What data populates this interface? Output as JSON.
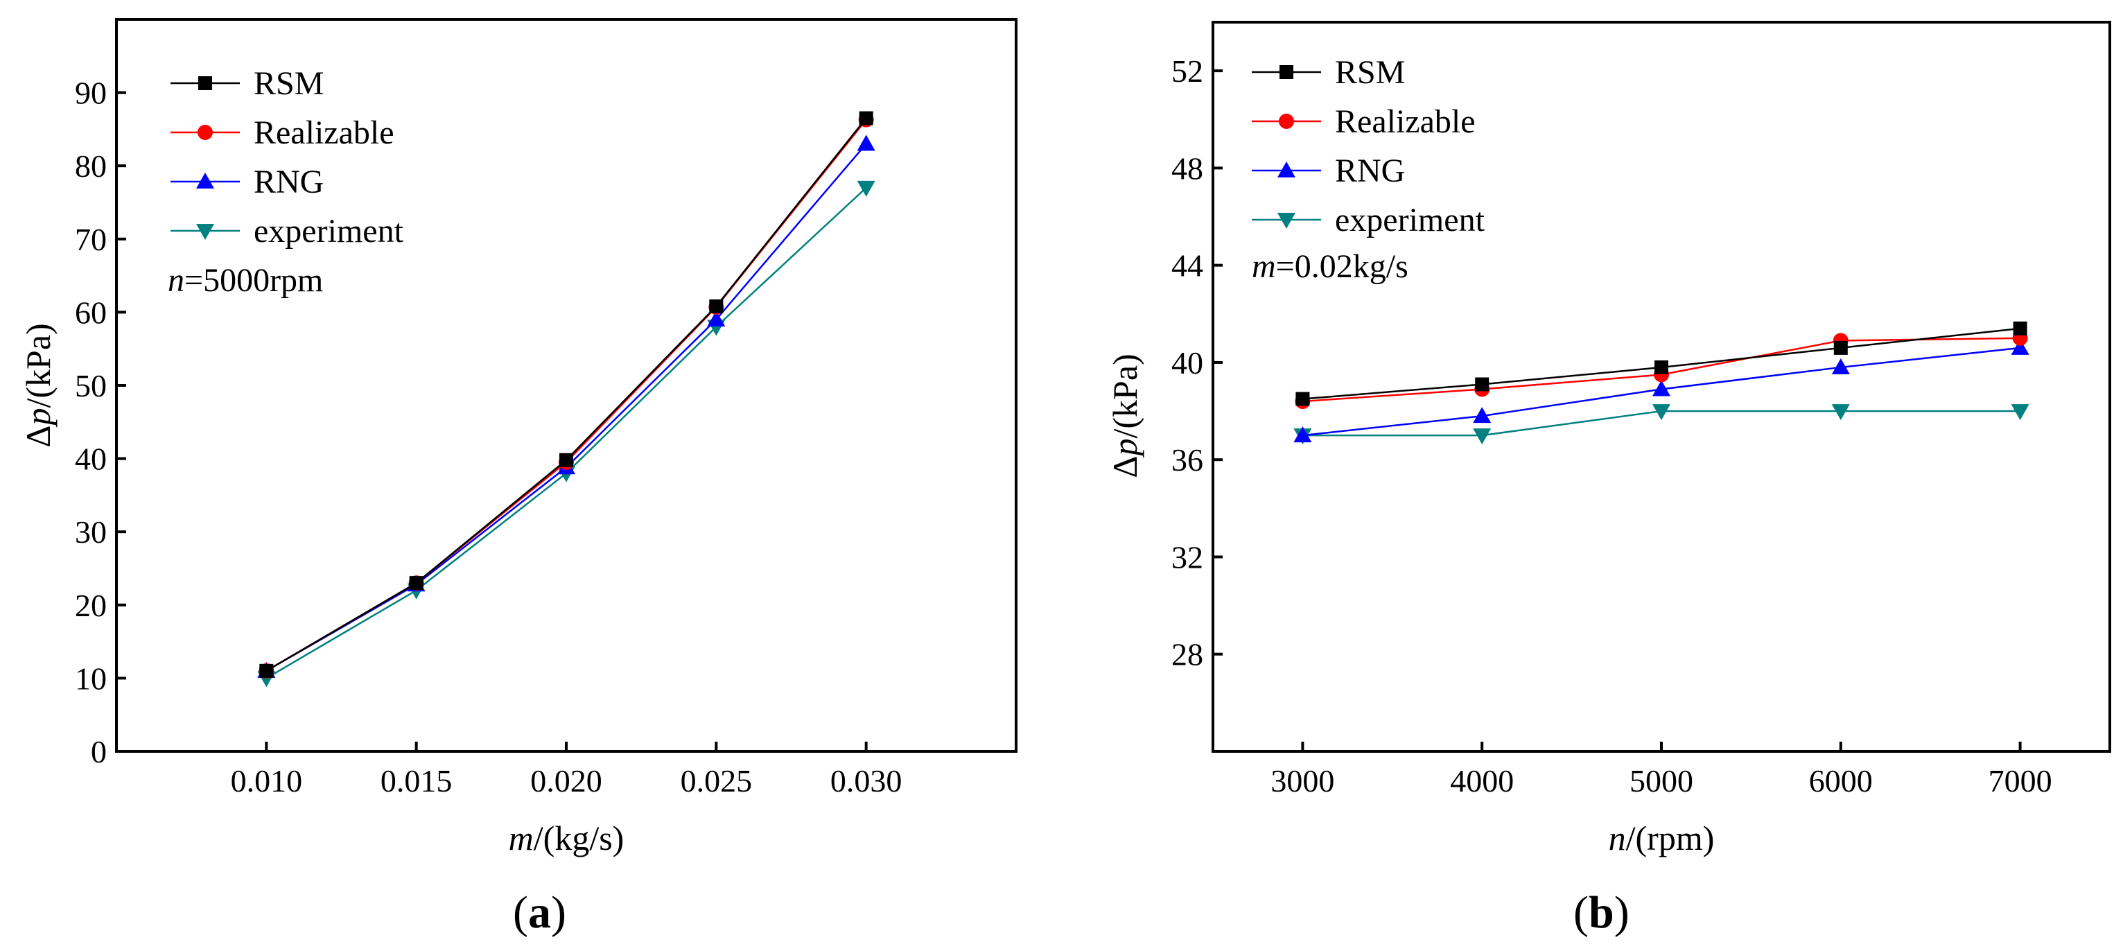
{
  "chart_data": [
    {
      "type": "line",
      "panel_label": "a",
      "xlabel": {
        "var": "m",
        "unit": "/(kg/s)"
      },
      "ylabel": {
        "prefix": "Δ",
        "var": "p",
        "unit": "/(kPa)"
      },
      "annotation": {
        "var": "n",
        "rest": "=5000rpm"
      },
      "xlim": [
        0.005,
        0.035
      ],
      "ylim": [
        0,
        100
      ],
      "x": [
        0.01,
        0.015,
        0.02,
        0.025,
        0.03
      ],
      "x_tick_labels": [
        "0.010",
        "0.015",
        "0.020",
        "0.025",
        "0.030"
      ],
      "y_ticks": [
        0,
        10,
        20,
        30,
        40,
        50,
        60,
        70,
        80,
        90
      ],
      "y_tick_labels": [
        "0",
        "10",
        "20",
        "30",
        "40",
        "50",
        "60",
        "70",
        "80",
        "90"
      ],
      "series": [
        {
          "name": "RSM",
          "values": [
            11.0,
            23.0,
            39.8,
            60.8,
            86.5
          ]
        },
        {
          "name": "Realizable",
          "values": [
            11.0,
            23.0,
            39.5,
            60.7,
            86.3
          ]
        },
        {
          "name": "RNG",
          "values": [
            11.0,
            22.8,
            38.8,
            59.0,
            83.0
          ]
        },
        {
          "name": "experiment",
          "values": [
            10.0,
            22.0,
            38.0,
            58.0,
            77.0
          ]
        }
      ],
      "legend_position": "top-left"
    },
    {
      "type": "line",
      "panel_label": "b",
      "xlabel": {
        "var": "n",
        "unit": "/(rpm)"
      },
      "ylabel": {
        "prefix": "Δ",
        "var": "p",
        "unit": "/(kPa)"
      },
      "annotation": {
        "var": "m",
        "rest": "=0.02kg/s"
      },
      "xlim": [
        2500,
        7500
      ],
      "ylim": [
        24,
        54
      ],
      "x": [
        3000,
        4000,
        5000,
        6000,
        7000
      ],
      "x_tick_labels": [
        "3000",
        "4000",
        "5000",
        "6000",
        "7000"
      ],
      "y_ticks": [
        28,
        32,
        36,
        40,
        44,
        48,
        52
      ],
      "y_tick_labels": [
        "28",
        "32",
        "36",
        "40",
        "44",
        "48",
        "52"
      ],
      "series": [
        {
          "name": "RSM",
          "values": [
            38.5,
            39.1,
            39.8,
            40.6,
            41.4
          ]
        },
        {
          "name": "Realizable",
          "values": [
            38.4,
            38.9,
            39.5,
            40.9,
            41.0
          ]
        },
        {
          "name": "RNG",
          "values": [
            37.0,
            37.8,
            38.9,
            39.8,
            40.6
          ]
        },
        {
          "name": "experiment",
          "values": [
            37.0,
            37.0,
            38.0,
            38.0,
            38.0
          ]
        }
      ],
      "legend_position": "top-left"
    }
  ],
  "styles": {
    "RSM": {
      "color": "#000000",
      "marker": "square"
    },
    "Realizable": {
      "color": "#ff0000",
      "marker": "circle"
    },
    "RNG": {
      "color": "#0000ff",
      "marker": "triangle-up"
    },
    "experiment": {
      "color": "#008080",
      "marker": "triangle-down"
    }
  }
}
